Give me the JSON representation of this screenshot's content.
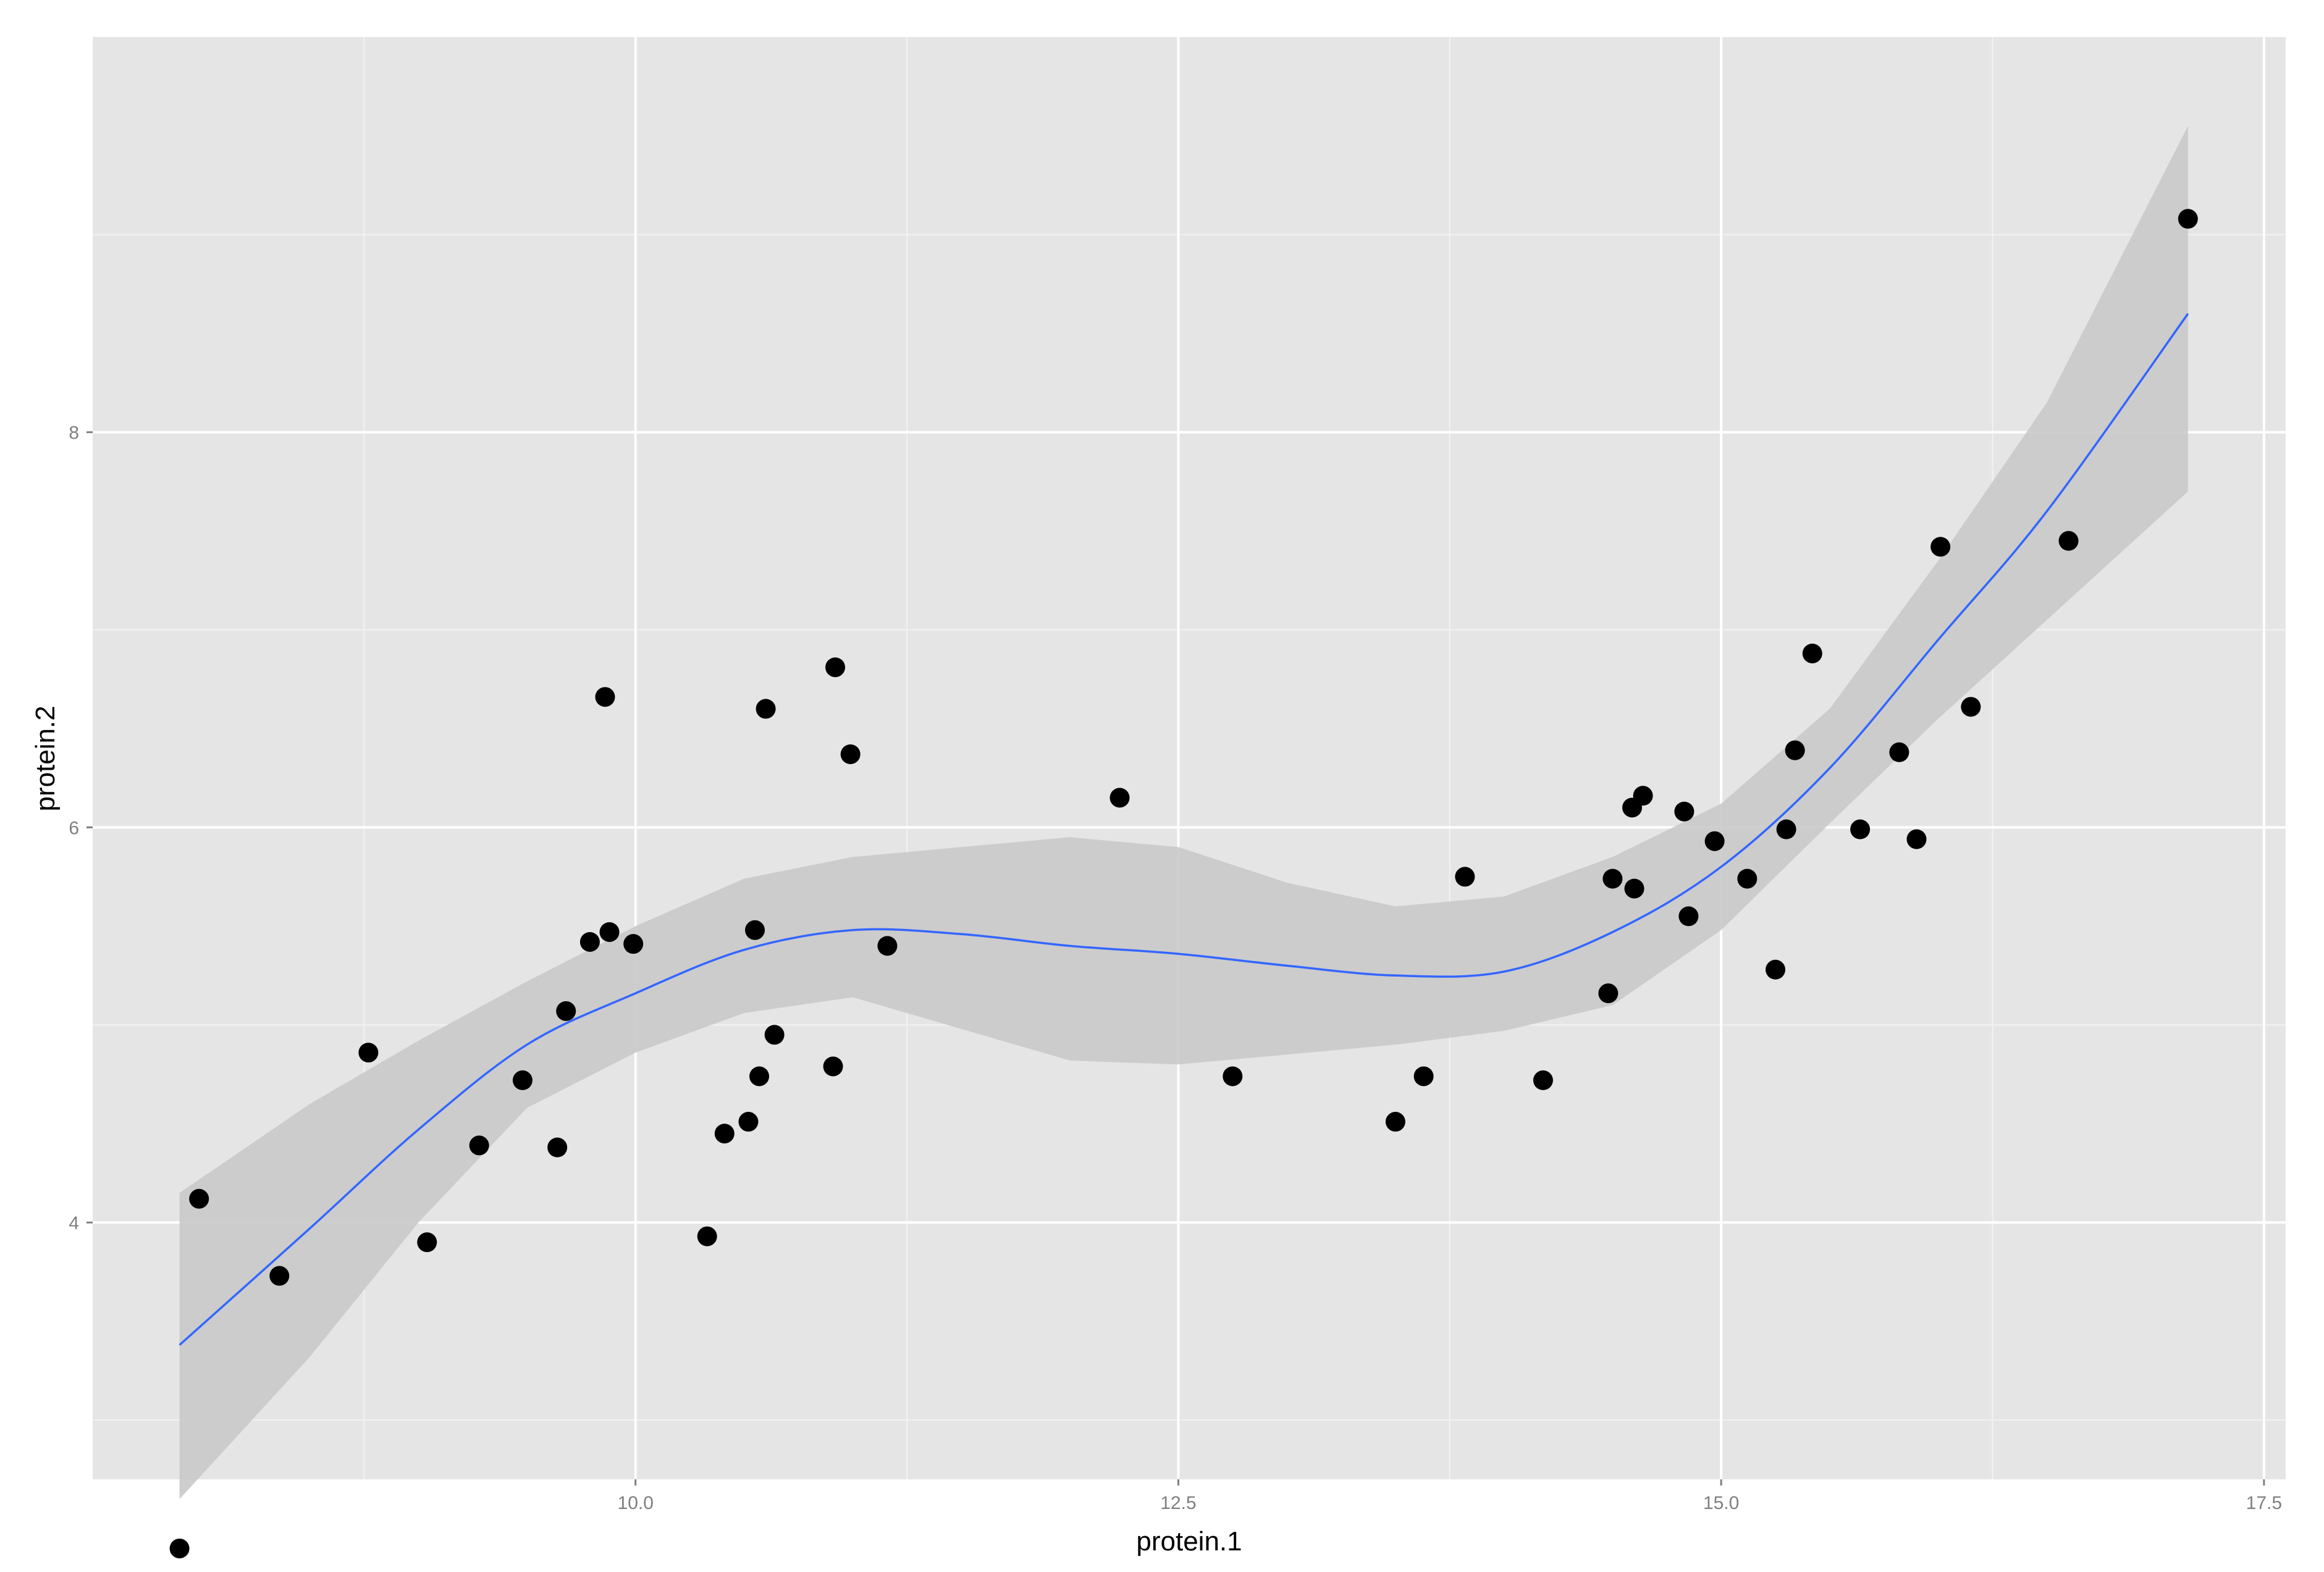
{
  "colors": {
    "panel_bg": "#e5e5e5",
    "grid_major": "#ffffff",
    "grid_minor": "#f2f2f2",
    "ribbon": "#c9c9c9",
    "fit_line": "#3366ff",
    "points": "#000000"
  },
  "chart_data": {
    "type": "scatter",
    "title": "",
    "xlabel": "protein.1",
    "ylabel": "protein.2",
    "xlim": [
      7.5,
      17.6
    ],
    "ylim": [
      2.7,
      10.0
    ],
    "x_ticks": [
      10.0,
      12.5,
      15.0,
      17.5
    ],
    "x_tick_labels": [
      "10.0",
      "12.5",
      "15.0",
      "17.5"
    ],
    "y_ticks": [
      4,
      6,
      8
    ],
    "y_tick_labels": [
      "4",
      "6",
      "8"
    ],
    "grid": true,
    "legend": "none",
    "series": [
      {
        "type": "points",
        "x": [
          7.9,
          7.99,
          8.36,
          8.77,
          9.04,
          9.28,
          9.48,
          9.64,
          9.68,
          9.79,
          9.86,
          9.88,
          9.99,
          10.33,
          10.41,
          10.52,
          10.55,
          10.57,
          10.6,
          10.64,
          10.91,
          10.92,
          10.99,
          11.16,
          12.23,
          12.75,
          13.5,
          13.63,
          13.82,
          14.18,
          14.48,
          14.5,
          14.59,
          14.6,
          14.64,
          14.83,
          14.85,
          14.97,
          15.12,
          15.25,
          15.3,
          15.34,
          15.42,
          15.64,
          15.82,
          15.9,
          16.01,
          16.15,
          16.6,
          17.15
        ],
        "y": [
          2.35,
          4.12,
          3.73,
          4.86,
          3.9,
          4.39,
          4.72,
          4.38,
          5.07,
          5.42,
          6.66,
          5.47,
          5.41,
          3.93,
          4.45,
          4.51,
          5.48,
          4.74,
          6.6,
          4.95,
          4.79,
          6.81,
          6.37,
          5.4,
          6.15,
          4.74,
          4.51,
          4.74,
          5.75,
          4.72,
          5.16,
          5.74,
          6.1,
          5.69,
          6.16,
          6.08,
          5.55,
          5.93,
          5.74,
          5.28,
          5.99,
          6.39,
          6.88,
          5.99,
          6.38,
          5.94,
          7.42,
          6.61,
          7.45,
          9.08
        ]
      },
      {
        "type": "line",
        "x": [
          7.9,
          8.5,
          9.0,
          9.5,
          10.0,
          10.5,
          11.0,
          11.5,
          12.0,
          12.5,
          13.0,
          13.5,
          14.0,
          14.5,
          15.0,
          15.5,
          16.0,
          16.5,
          17.15
        ],
        "y": [
          3.38,
          3.97,
          4.47,
          4.9,
          5.16,
          5.38,
          5.48,
          5.46,
          5.4,
          5.36,
          5.3,
          5.25,
          5.27,
          5.47,
          5.8,
          6.3,
          6.95,
          7.6,
          8.6
        ]
      },
      {
        "type": "ribbon",
        "x": [
          7.9,
          8.5,
          9.0,
          9.5,
          10.0,
          10.5,
          11.0,
          11.5,
          12.0,
          12.5,
          13.0,
          13.5,
          14.0,
          14.5,
          15.0,
          15.5,
          16.0,
          16.5,
          17.15
        ],
        "upper": [
          4.15,
          4.6,
          4.92,
          5.22,
          5.5,
          5.74,
          5.85,
          5.9,
          5.95,
          5.9,
          5.72,
          5.6,
          5.65,
          5.85,
          6.12,
          6.6,
          7.35,
          8.15,
          9.55
        ],
        "lower": [
          2.6,
          3.32,
          4.0,
          4.58,
          4.86,
          5.06,
          5.14,
          4.98,
          4.82,
          4.8,
          4.85,
          4.9,
          4.97,
          5.1,
          5.48,
          6.02,
          6.55,
          7.05,
          7.7
        ]
      }
    ]
  }
}
